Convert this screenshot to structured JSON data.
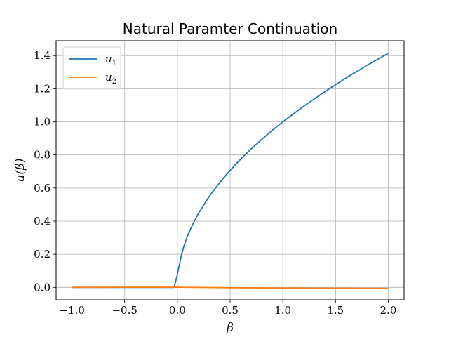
{
  "chart_data": {
    "type": "line",
    "title": "Natural Paramter Continuation",
    "xlabel": "β",
    "ylabel": "u(β)",
    "xlim": [
      -1.15,
      2.15
    ],
    "ylim": [
      -0.075,
      1.49
    ],
    "xticks": [
      -1.0,
      -0.5,
      0.0,
      0.5,
      1.0,
      1.5,
      2.0
    ],
    "xtick_labels": [
      "−1.0",
      "−0.5",
      "0.0",
      "0.5",
      "1.0",
      "1.5",
      "2.0"
    ],
    "yticks": [
      0.0,
      0.2,
      0.4,
      0.6,
      0.8,
      1.0,
      1.2,
      1.4
    ],
    "ytick_labels": [
      "0.0",
      "0.2",
      "0.4",
      "0.6",
      "0.8",
      "1.0",
      "1.2",
      "1.4"
    ],
    "grid": true,
    "legend_position": "top-left",
    "series": [
      {
        "name": "u1",
        "legend_base": "u",
        "legend_sub": "1",
        "color": "#1f77b4",
        "x": [
          -1.0,
          -0.5,
          -0.03,
          0.0,
          0.02,
          0.04,
          0.06,
          0.08,
          0.1,
          0.15,
          0.2,
          0.3,
          0.4,
          0.5,
          0.6,
          0.7,
          0.8,
          0.9,
          1.0,
          1.2,
          1.4,
          1.6,
          1.8,
          2.0
        ],
        "y": [
          0.0,
          0.0,
          0.0,
          0.08,
          0.14,
          0.2,
          0.245,
          0.283,
          0.316,
          0.387,
          0.447,
          0.548,
          0.632,
          0.707,
          0.775,
          0.837,
          0.894,
          0.949,
          1.0,
          1.095,
          1.183,
          1.265,
          1.342,
          1.414
        ]
      },
      {
        "name": "u2",
        "legend_base": "u",
        "legend_sub": "2",
        "color": "#ff7f0e",
        "x": [
          -1.0,
          -0.5,
          0.0,
          0.5,
          1.0,
          1.5,
          2.0
        ],
        "y": [
          0.0,
          0.001,
          0.001,
          -0.002,
          -0.004,
          -0.005,
          -0.006
        ]
      }
    ]
  }
}
